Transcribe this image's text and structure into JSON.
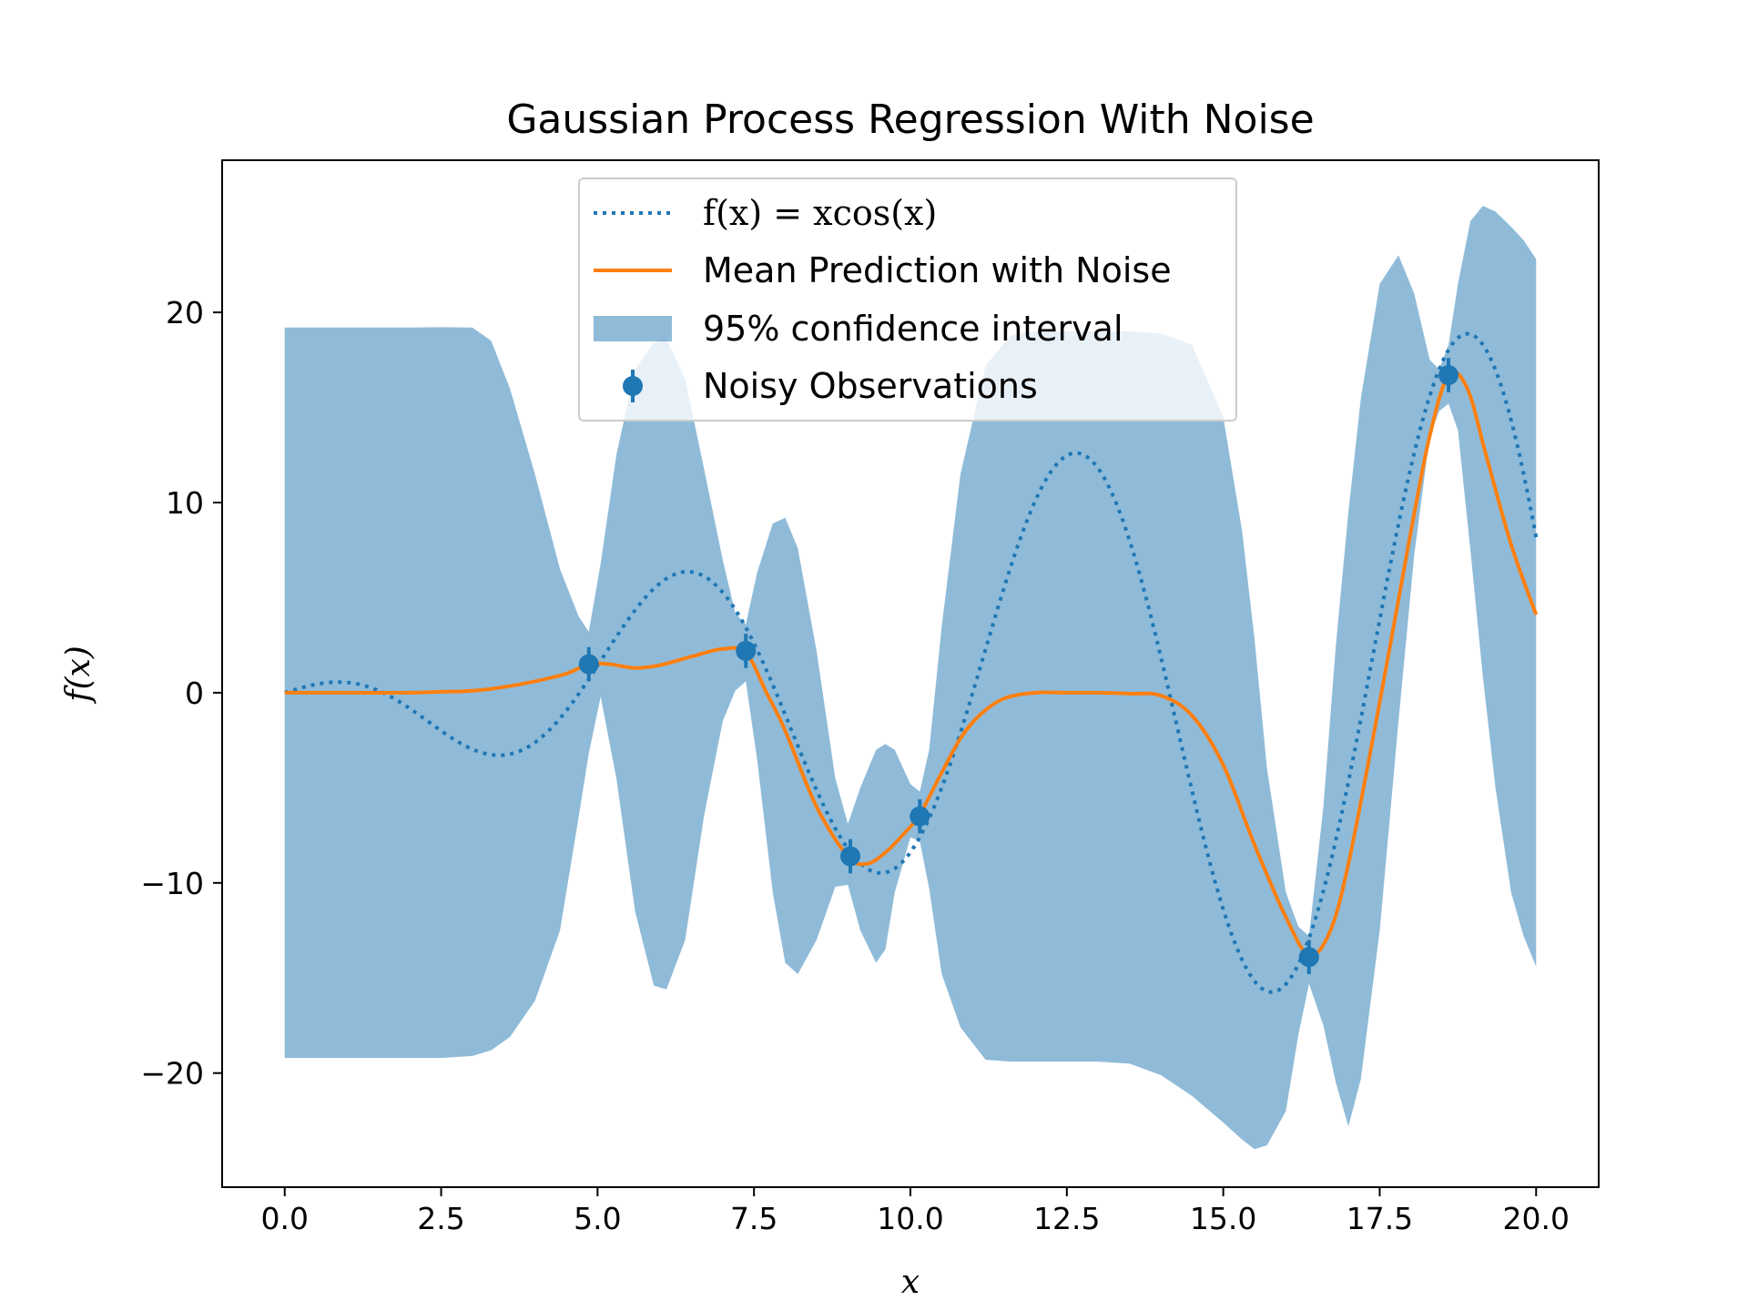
{
  "chart_data": {
    "type": "line",
    "title": "Gaussian Process Regression With Noise",
    "xlabel": "x",
    "ylabel": "f(x)",
    "xlim": [
      -1.0,
      21.0
    ],
    "ylim": [
      -26.0,
      28.0
    ],
    "xticks": [
      0.0,
      2.5,
      5.0,
      7.5,
      10.0,
      12.5,
      15.0,
      17.5,
      20.0
    ],
    "xtick_labels": [
      "0.0",
      "2.5",
      "5.0",
      "7.5",
      "10.0",
      "12.5",
      "15.0",
      "17.5",
      "20.0"
    ],
    "yticks": [
      -20,
      -10,
      0,
      10,
      20
    ],
    "ytick_labels": [
      "−20",
      "−10",
      "0",
      "10",
      "20"
    ],
    "grid": false,
    "legend_position": "top-center",
    "colors": {
      "true_function": "#1f77b4",
      "mean": "#ff7f0e",
      "band": "#1f77b4",
      "observations": "#1f77b4"
    },
    "series": [
      {
        "name": "f(x) = xcos(x)",
        "kind": "dotted-line",
        "function": "x*cos(x)",
        "x_range": [
          0.0,
          20.0
        ]
      },
      {
        "name": "Mean Prediction with Noise",
        "kind": "line",
        "x": [
          0,
          1,
          2,
          2.5,
          3,
          3.5,
          4,
          4.5,
          4.86,
          5.2,
          5.6,
          6.0,
          6.5,
          7.0,
          7.37,
          7.7,
          8.0,
          8.5,
          9.0,
          9.3,
          9.6,
          9.9,
          10.15,
          10.5,
          10.8,
          11.1,
          11.5,
          12.0,
          12.5,
          13.0,
          13.5,
          14.0,
          14.5,
          15.0,
          15.5,
          16.0,
          16.37,
          16.7,
          17.0,
          17.5,
          18.0,
          18.3,
          18.6,
          18.9,
          19.2,
          19.6,
          20.0
        ],
        "y": [
          0,
          0,
          0,
          0.05,
          0.1,
          0.3,
          0.6,
          1.0,
          1.5,
          1.5,
          1.3,
          1.45,
          1.9,
          2.3,
          2.1,
          0.0,
          -2.0,
          -6.0,
          -8.6,
          -9.0,
          -8.4,
          -7.4,
          -6.4,
          -4.2,
          -2.4,
          -1.2,
          -0.3,
          0.0,
          0.0,
          0.0,
          -0.05,
          -0.15,
          -1.2,
          -3.8,
          -8.0,
          -11.8,
          -13.8,
          -12.6,
          -9.0,
          -0.5,
          8.5,
          13.5,
          16.7,
          16.0,
          12.5,
          7.8,
          4.1
        ]
      },
      {
        "name": "95% confidence interval",
        "kind": "band",
        "x": [
          0,
          1,
          2,
          2.5,
          3,
          3.3,
          3.6,
          4.0,
          4.4,
          4.7,
          4.86,
          5.05,
          5.3,
          5.6,
          5.9,
          6.1,
          6.4,
          6.7,
          7.0,
          7.2,
          7.37,
          7.55,
          7.8,
          8.0,
          8.2,
          8.5,
          8.8,
          9.0,
          9.2,
          9.45,
          9.6,
          9.75,
          10.0,
          10.15,
          10.3,
          10.5,
          10.8,
          11.2,
          11.6,
          12.0,
          12.5,
          13.0,
          13.5,
          14.0,
          14.5,
          15.0,
          15.3,
          15.5,
          15.7,
          16.0,
          16.2,
          16.37,
          16.6,
          16.8,
          17.0,
          17.2,
          17.5,
          17.8,
          18.05,
          18.3,
          18.45,
          18.6,
          18.75,
          18.95,
          19.15,
          19.35,
          19.6,
          19.8,
          20.0
        ],
        "upper": [
          19.2,
          19.2,
          19.2,
          19.22,
          19.2,
          18.5,
          16.0,
          11.5,
          6.5,
          4.0,
          3.2,
          6.8,
          12.5,
          17.0,
          18.4,
          18.6,
          16.5,
          11.8,
          7.0,
          4.2,
          3.6,
          6.3,
          8.9,
          9.2,
          7.6,
          2.2,
          -4.5,
          -6.9,
          -5.0,
          -3.0,
          -2.7,
          -3.0,
          -4.8,
          -5.2,
          -3.0,
          3.5,
          11.5,
          17.2,
          18.8,
          19.0,
          19.0,
          19.0,
          19.0,
          18.9,
          18.3,
          14.5,
          8.5,
          2.8,
          -4.0,
          -10.5,
          -12.3,
          -12.8,
          -6.0,
          2.5,
          9.5,
          15.5,
          21.5,
          23.0,
          21.0,
          17.5,
          17.0,
          18.3,
          21.5,
          24.8,
          25.6,
          25.3,
          24.5,
          23.8,
          22.8
        ],
        "lower": [
          -19.2,
          -19.2,
          -19.2,
          -19.2,
          -19.1,
          -18.8,
          -18.1,
          -16.2,
          -12.5,
          -6.5,
          -3.2,
          -0.2,
          -4.5,
          -11.5,
          -15.4,
          -15.6,
          -13.0,
          -6.5,
          -1.5,
          0.1,
          0.6,
          -3.5,
          -10.5,
          -14.2,
          -14.8,
          -13.0,
          -10.2,
          -10.1,
          -12.5,
          -14.2,
          -13.5,
          -10.5,
          -7.6,
          -7.8,
          -10.3,
          -14.8,
          -17.6,
          -19.3,
          -19.4,
          -19.4,
          -19.4,
          -19.4,
          -19.5,
          -20.1,
          -21.2,
          -22.6,
          -23.5,
          -24.0,
          -23.8,
          -22.0,
          -18.0,
          -15.3,
          -17.5,
          -20.5,
          -22.8,
          -20.3,
          -12.5,
          -1.5,
          7.2,
          13.5,
          14.8,
          15.2,
          13.8,
          7.5,
          0.8,
          -5.0,
          -10.5,
          -12.8,
          -14.4
        ]
      },
      {
        "name": "Noisy Observations",
        "kind": "errorbar",
        "x": [
          4.86,
          7.37,
          9.04,
          10.15,
          16.37,
          18.6
        ],
        "y": [
          1.5,
          2.2,
          -8.6,
          -6.5,
          -13.9,
          16.7
        ],
        "yerr": [
          0.9,
          0.9,
          0.9,
          0.9,
          0.9,
          0.9
        ]
      }
    ]
  }
}
